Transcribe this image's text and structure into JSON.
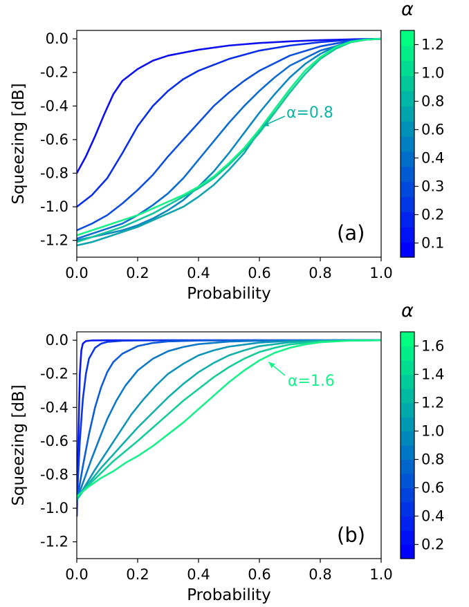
{
  "chart_data": [
    {
      "type": "line",
      "panel_label": "(a)",
      "xlabel": "Probability",
      "ylabel": "Squeezing [dB]",
      "xlim": [
        0.0,
        1.0
      ],
      "ylim": [
        -1.3,
        0.05
      ],
      "xticks": [
        0.0,
        0.2,
        0.4,
        0.6,
        0.8,
        1.0
      ],
      "xtick_labels": [
        "0.0",
        "0.2",
        "0.4",
        "0.6",
        "0.8",
        "1.0"
      ],
      "yticks": [
        0.0,
        -0.2,
        -0.4,
        -0.6,
        -0.8,
        -1.0,
        -1.2
      ],
      "ytick_labels": [
        "0.0",
        "-0.2",
        "-0.4",
        "-0.6",
        "-0.8",
        "-1.0",
        "-1.2"
      ],
      "grid": false,
      "colorbar": {
        "label": "α",
        "colormap": "winter",
        "color_low": "#0000ff",
        "color_high": "#00ff80",
        "levels": 15,
        "ticks": [
          0.1,
          0.2,
          0.3,
          0.4,
          0.6,
          0.8,
          1.0,
          1.2
        ],
        "tick_labels": [
          "0.1",
          "0.2",
          "0.3",
          "0.4",
          "0.6",
          "0.8",
          "1.0",
          "1.2"
        ]
      },
      "annotation": {
        "text": "α=0.8",
        "color": "#0fb4a4",
        "arrow_to": [
          0.61,
          -0.52
        ]
      },
      "series": [
        {
          "color": "#0c10f0",
          "x": [
            0.0,
            0.03,
            0.06,
            0.09,
            0.12,
            0.15,
            0.2,
            0.25,
            0.3,
            0.4,
            0.5,
            0.6,
            0.7,
            0.8,
            0.9,
            0.95,
            1.0
          ],
          "y": [
            -0.8,
            -0.7,
            -0.58,
            -0.45,
            -0.33,
            -0.25,
            -0.18,
            -0.13,
            -0.1,
            -0.065,
            -0.04,
            -0.025,
            -0.015,
            -0.008,
            -0.003,
            -0.001,
            0.0
          ]
        },
        {
          "color": "#0a2ee8",
          "x": [
            0.0,
            0.05,
            0.1,
            0.15,
            0.2,
            0.25,
            0.3,
            0.35,
            0.4,
            0.5,
            0.6,
            0.7,
            0.8,
            0.9,
            0.95,
            1.0
          ],
          "y": [
            -1.0,
            -0.93,
            -0.83,
            -0.68,
            -0.52,
            -0.4,
            -0.31,
            -0.24,
            -0.19,
            -0.12,
            -0.07,
            -0.04,
            -0.02,
            -0.006,
            -0.002,
            0.0
          ]
        },
        {
          "color": "#0b4fdc",
          "x": [
            0.0,
            0.05,
            0.1,
            0.15,
            0.2,
            0.25,
            0.3,
            0.35,
            0.4,
            0.45,
            0.5,
            0.55,
            0.6,
            0.7,
            0.8,
            0.9,
            0.95,
            1.0
          ],
          "y": [
            -1.14,
            -1.1,
            -1.05,
            -0.98,
            -0.9,
            -0.81,
            -0.7,
            -0.6,
            -0.5,
            -0.4,
            -0.32,
            -0.25,
            -0.19,
            -0.1,
            -0.045,
            -0.012,
            -0.004,
            0.0
          ]
        },
        {
          "color": "#0c6cd0",
          "x": [
            0.0,
            0.05,
            0.1,
            0.15,
            0.2,
            0.25,
            0.3,
            0.35,
            0.4,
            0.45,
            0.5,
            0.55,
            0.6,
            0.65,
            0.7,
            0.8,
            0.9,
            0.95,
            1.0
          ],
          "y": [
            -1.19,
            -1.16,
            -1.13,
            -1.1,
            -1.05,
            -0.99,
            -0.92,
            -0.83,
            -0.72,
            -0.61,
            -0.5,
            -0.4,
            -0.31,
            -0.23,
            -0.16,
            -0.07,
            -0.02,
            -0.005,
            0.0
          ]
        },
        {
          "color": "#0c88c0",
          "x": [
            0.0,
            0.05,
            0.1,
            0.15,
            0.2,
            0.25,
            0.3,
            0.35,
            0.4,
            0.45,
            0.5,
            0.55,
            0.6,
            0.65,
            0.7,
            0.75,
            0.8,
            0.85,
            0.9,
            0.95,
            1.0
          ],
          "y": [
            -1.2,
            -1.18,
            -1.16,
            -1.14,
            -1.11,
            -1.07,
            -1.02,
            -0.96,
            -0.88,
            -0.79,
            -0.68,
            -0.56,
            -0.44,
            -0.33,
            -0.23,
            -0.15,
            -0.09,
            -0.045,
            -0.015,
            -0.004,
            0.0
          ]
        },
        {
          "color": "#0fa4ac",
          "x": [
            0.0,
            0.05,
            0.1,
            0.15,
            0.2,
            0.25,
            0.3,
            0.35,
            0.4,
            0.45,
            0.5,
            0.55,
            0.6,
            0.65,
            0.7,
            0.75,
            0.8,
            0.85,
            0.9,
            0.95,
            1.0
          ],
          "y": [
            -1.23,
            -1.21,
            -1.18,
            -1.15,
            -1.12,
            -1.08,
            -1.04,
            -1.0,
            -0.94,
            -0.87,
            -0.78,
            -0.68,
            -0.55,
            -0.42,
            -0.3,
            -0.19,
            -0.11,
            -0.055,
            -0.02,
            -0.005,
            0.0
          ]
        },
        {
          "color": "#12c49a",
          "x": [
            0.0,
            0.05,
            0.1,
            0.15,
            0.2,
            0.25,
            0.3,
            0.35,
            0.4,
            0.45,
            0.5,
            0.55,
            0.6,
            0.65,
            0.7,
            0.75,
            0.8,
            0.85,
            0.9,
            0.95,
            1.0
          ],
          "y": [
            -1.21,
            -1.18,
            -1.15,
            -1.12,
            -1.08,
            -1.04,
            -0.99,
            -0.94,
            -0.89,
            -0.83,
            -0.75,
            -0.66,
            -0.56,
            -0.44,
            -0.32,
            -0.21,
            -0.12,
            -0.06,
            -0.02,
            -0.005,
            0.0
          ]
        },
        {
          "color": "#18f08a",
          "x": [
            0.0,
            0.05,
            0.1,
            0.15,
            0.2,
            0.25,
            0.3,
            0.35,
            0.4,
            0.45,
            0.5,
            0.55,
            0.6,
            0.65,
            0.7,
            0.75,
            0.8,
            0.85,
            0.9,
            0.95,
            1.0
          ],
          "y": [
            -1.17,
            -1.14,
            -1.11,
            -1.08,
            -1.05,
            -1.01,
            -0.97,
            -0.93,
            -0.88,
            -0.82,
            -0.74,
            -0.65,
            -0.54,
            -0.42,
            -0.3,
            -0.19,
            -0.11,
            -0.05,
            -0.018,
            -0.004,
            0.0
          ]
        }
      ]
    },
    {
      "type": "line",
      "panel_label": "(b)",
      "xlabel": "Probability",
      "ylabel": "Squeezing [dB]",
      "xlim": [
        0.0,
        1.0
      ],
      "ylim": [
        -1.3,
        0.05
      ],
      "xticks": [
        0.0,
        0.2,
        0.4,
        0.6,
        0.8,
        1.0
      ],
      "xtick_labels": [
        "0.0",
        "0.2",
        "0.4",
        "0.6",
        "0.8",
        "1.0"
      ],
      "yticks": [
        0.0,
        -0.2,
        -0.4,
        -0.6,
        -0.8,
        -1.0,
        -1.2
      ],
      "ytick_labels": [
        "0.0",
        "-0.2",
        "-0.4",
        "-0.6",
        "-0.8",
        "-1.0",
        "-1.2"
      ],
      "grid": false,
      "colorbar": {
        "label": "α",
        "colormap": "winter",
        "color_low": "#0000ff",
        "color_high": "#00ff80",
        "levels": 16,
        "ticks": [
          0.2,
          0.4,
          0.6,
          0.8,
          1.0,
          1.2,
          1.4,
          1.6
        ],
        "tick_labels": [
          "0.2",
          "0.4",
          "0.6",
          "0.8",
          "1.0",
          "1.2",
          "1.4",
          "1.6"
        ]
      },
      "annotation": {
        "text": "α=1.6",
        "color": "#18f08a",
        "arrow_to": [
          0.63,
          -0.13
        ]
      },
      "series": [
        {
          "color": "#0818f4",
          "x": [
            0.0,
            0.005,
            0.01,
            0.015,
            0.02,
            0.03,
            0.05,
            0.1,
            0.2,
            0.4,
            0.6,
            0.8,
            1.0
          ],
          "y": [
            -1.05,
            -0.6,
            -0.2,
            -0.06,
            -0.02,
            -0.005,
            -0.001,
            0.0,
            0.0,
            0.0,
            0.0,
            0.0,
            0.0
          ]
        },
        {
          "color": "#0a36e6",
          "x": [
            0.0,
            0.01,
            0.02,
            0.03,
            0.04,
            0.06,
            0.08,
            0.1,
            0.15,
            0.2,
            0.3,
            0.5,
            0.7,
            1.0
          ],
          "y": [
            -0.97,
            -0.6,
            -0.35,
            -0.2,
            -0.11,
            -0.045,
            -0.02,
            -0.01,
            -0.003,
            -0.001,
            0.0,
            0.0,
            0.0,
            0.0
          ]
        },
        {
          "color": "#0c5cd8",
          "x": [
            0.0,
            0.02,
            0.04,
            0.06,
            0.08,
            0.1,
            0.12,
            0.15,
            0.2,
            0.25,
            0.3,
            0.4,
            0.5,
            0.7,
            1.0
          ],
          "y": [
            -0.96,
            -0.75,
            -0.56,
            -0.4,
            -0.28,
            -0.19,
            -0.13,
            -0.08,
            -0.035,
            -0.016,
            -0.007,
            -0.002,
            -0.0005,
            0.0,
            0.0
          ]
        },
        {
          "color": "#0c78c8",
          "x": [
            0.0,
            0.02,
            0.05,
            0.08,
            0.1,
            0.13,
            0.16,
            0.2,
            0.25,
            0.3,
            0.35,
            0.4,
            0.5,
            0.6,
            0.7,
            1.0
          ],
          "y": [
            -0.95,
            -0.85,
            -0.7,
            -0.56,
            -0.47,
            -0.36,
            -0.27,
            -0.18,
            -0.11,
            -0.065,
            -0.04,
            -0.023,
            -0.008,
            -0.003,
            -0.001,
            0.0
          ]
        },
        {
          "color": "#0e94b8",
          "x": [
            0.0,
            0.03,
            0.06,
            0.1,
            0.14,
            0.18,
            0.22,
            0.26,
            0.3,
            0.35,
            0.4,
            0.45,
            0.5,
            0.6,
            0.7,
            0.8,
            1.0
          ],
          "y": [
            -0.95,
            -0.86,
            -0.77,
            -0.66,
            -0.55,
            -0.44,
            -0.35,
            -0.27,
            -0.2,
            -0.14,
            -0.09,
            -0.06,
            -0.038,
            -0.014,
            -0.004,
            -0.001,
            0.0
          ]
        },
        {
          "color": "#10b0a8",
          "x": [
            0.0,
            0.04,
            0.08,
            0.12,
            0.16,
            0.2,
            0.25,
            0.3,
            0.35,
            0.4,
            0.45,
            0.5,
            0.55,
            0.6,
            0.7,
            0.8,
            1.0
          ],
          "y": [
            -0.95,
            -0.85,
            -0.76,
            -0.68,
            -0.6,
            -0.52,
            -0.43,
            -0.34,
            -0.26,
            -0.19,
            -0.135,
            -0.09,
            -0.06,
            -0.035,
            -0.012,
            -0.003,
            0.0
          ]
        },
        {
          "color": "#14cc98",
          "x": [
            0.0,
            0.04,
            0.08,
            0.12,
            0.16,
            0.2,
            0.25,
            0.3,
            0.35,
            0.4,
            0.45,
            0.5,
            0.55,
            0.6,
            0.65,
            0.7,
            0.8,
            0.9,
            1.0
          ],
          "y": [
            -0.94,
            -0.86,
            -0.79,
            -0.72,
            -0.66,
            -0.6,
            -0.52,
            -0.44,
            -0.36,
            -0.29,
            -0.22,
            -0.16,
            -0.11,
            -0.07,
            -0.045,
            -0.025,
            -0.008,
            -0.002,
            0.0
          ]
        },
        {
          "color": "#18f08a",
          "x": [
            0.0,
            0.04,
            0.08,
            0.12,
            0.16,
            0.2,
            0.25,
            0.3,
            0.35,
            0.4,
            0.45,
            0.5,
            0.55,
            0.6,
            0.65,
            0.7,
            0.75,
            0.8,
            0.9,
            1.0
          ],
          "y": [
            -0.93,
            -0.87,
            -0.82,
            -0.78,
            -0.73,
            -0.69,
            -0.63,
            -0.56,
            -0.49,
            -0.41,
            -0.33,
            -0.25,
            -0.18,
            -0.12,
            -0.075,
            -0.045,
            -0.025,
            -0.012,
            -0.002,
            0.0
          ]
        }
      ]
    }
  ]
}
